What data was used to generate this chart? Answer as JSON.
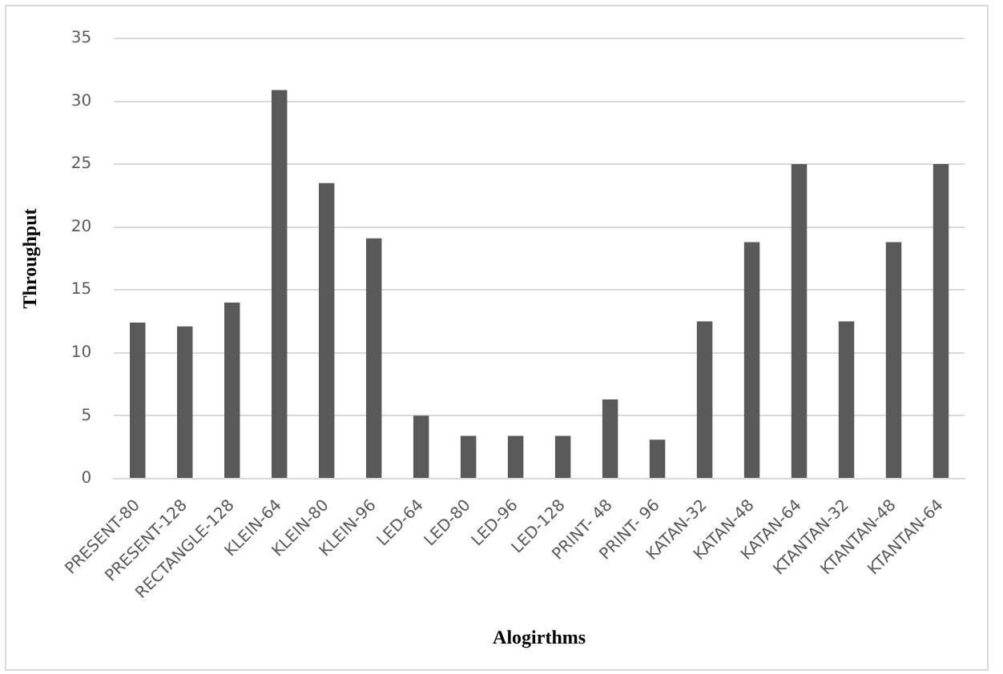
{
  "chart_data": {
    "type": "bar",
    "xlabel": "Alogirthms",
    "ylabel": "Throughput",
    "categories": [
      "PRESENT-80",
      "PRESENT-128",
      "RECTANGLE-128",
      "KLEIN-64",
      "KLEIN-80",
      "KLEIN-96",
      "LED-64",
      "LED-80",
      "LED-96",
      "LED-128",
      "PRINT- 48",
      "PRINT- 96",
      "KATAN-32",
      "KATAN-48",
      "KATAN-64",
      "KTANTAN-32",
      "KTANTAN-48",
      "KTANTAN-64"
    ],
    "values": [
      12.4,
      12.1,
      14,
      30.9,
      23.5,
      19.1,
      5,
      3.4,
      3.4,
      3.4,
      6.3,
      3.1,
      12.5,
      18.8,
      25,
      12.5,
      18.8,
      25
    ],
    "color": "#595959",
    "ylim": [
      0,
      35
    ],
    "yticks": [
      0,
      5,
      10,
      15,
      20,
      25,
      30,
      35
    ],
    "grid": "y"
  }
}
